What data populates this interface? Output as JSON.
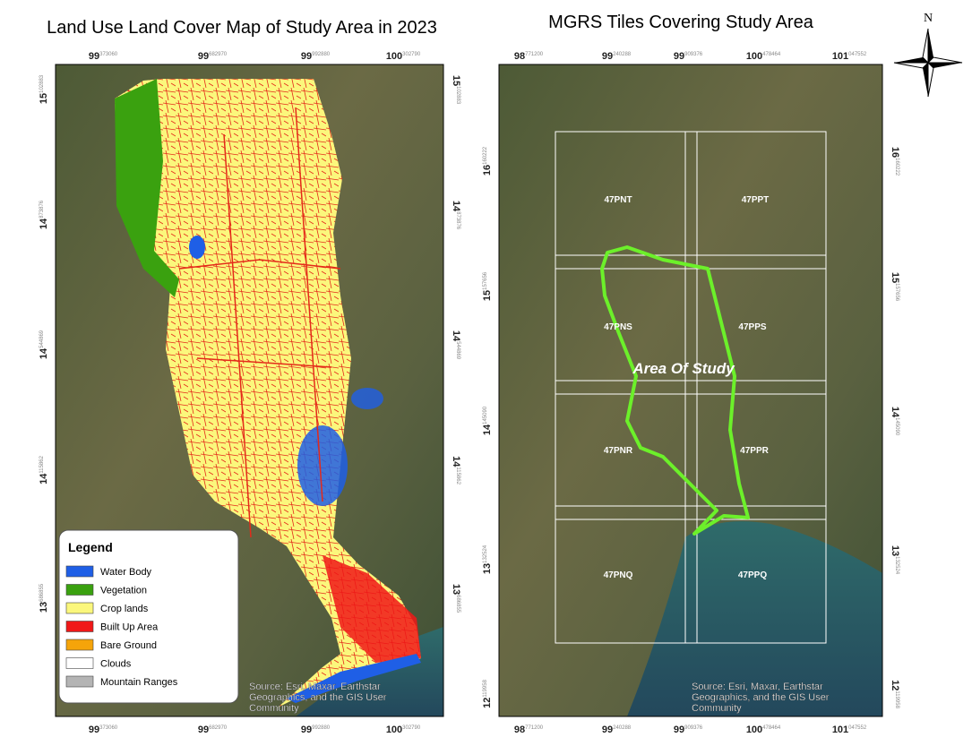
{
  "left_map": {
    "title": "Land Use Land Cover Map of Study Area in 2023",
    "top_ticks": [
      {
        "deg": "99",
        "sub": "373060"
      },
      {
        "deg": "99",
        "sub": "682970"
      },
      {
        "deg": "99",
        "sub": "992880"
      },
      {
        "deg": "100",
        "sub": "302790"
      }
    ],
    "side_ticks": [
      {
        "deg": "15",
        "sub": "102883"
      },
      {
        "deg": "14",
        "sub": "873876"
      },
      {
        "deg": "14",
        "sub": "544869"
      },
      {
        "deg": "14",
        "sub": "115862"
      },
      {
        "deg": "13",
        "sub": "686855"
      }
    ],
    "legend": {
      "title": "Legend",
      "items": [
        {
          "label": "Water Body",
          "color": "#1f5fe6"
        },
        {
          "label": "Vegetation",
          "color": "#3aa10f"
        },
        {
          "label": "Crop lands",
          "color": "#fbf77c"
        },
        {
          "label": "Built Up Area",
          "color": "#f01818"
        },
        {
          "label": "Bare Ground",
          "color": "#f5a40a"
        },
        {
          "label": "Clouds",
          "color": "#ffffff"
        },
        {
          "label": "Mountain Ranges",
          "color": "#b4b4b4"
        }
      ]
    },
    "source": [
      "Source: Esri, Maxar, Earthstar",
      "Geographics, and the GIS User",
      "Community"
    ]
  },
  "right_map": {
    "title": "MGRS Tiles Covering Study Area",
    "top_ticks": [
      {
        "deg": "98",
        "sub": "771200"
      },
      {
        "deg": "99",
        "sub": "240288"
      },
      {
        "deg": "99",
        "sub": "909376"
      },
      {
        "deg": "100",
        "sub": "478464"
      },
      {
        "deg": "101",
        "sub": "047552"
      }
    ],
    "side_ticks": [
      {
        "deg": "16",
        "sub": "160222"
      },
      {
        "deg": "15",
        "sub": "157656"
      },
      {
        "deg": "14",
        "sub": "145090"
      },
      {
        "deg": "13",
        "sub": "132524"
      },
      {
        "deg": "12",
        "sub": "119958"
      }
    ],
    "tiles": [
      "47PNT",
      "47PPT",
      "47PNS",
      "47PPS",
      "47PNR",
      "47PPR",
      "47PNQ",
      "47PPQ"
    ],
    "study_area_label": "Area Of Study",
    "source": [
      "Source: Esri, Maxar, Earthstar",
      "Geographics, and the GIS User",
      "Community"
    ]
  },
  "north_label": "N"
}
